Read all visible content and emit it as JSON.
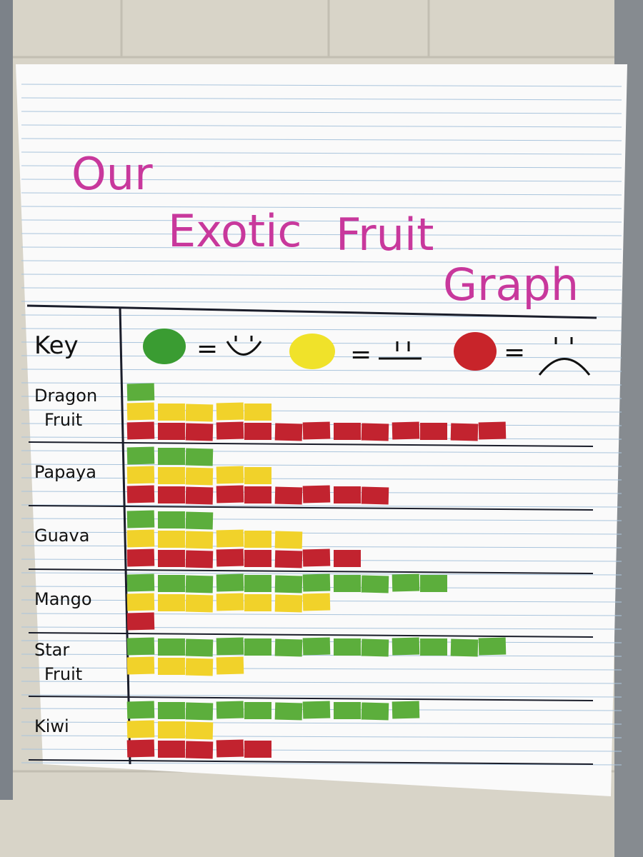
{
  "chart_data": {
    "type": "pictograph",
    "title": "Our Exotic Fruit Graph",
    "key_label": "Key",
    "categories": [
      "Dragon Fruit",
      "Papaya",
      "Guava",
      "Mango",
      "Star Fruit",
      "Kiwi"
    ],
    "series": [
      {
        "color": "#5cae3c",
        "values": [
          1,
          3,
          3,
          11,
          13,
          10
        ]
      },
      {
        "color": "#f1d22a",
        "values": [
          5,
          5,
          6,
          7,
          4,
          3
        ]
      },
      {
        "color": "#c2232f",
        "values": [
          13,
          9,
          8,
          1,
          0,
          5
        ]
      }
    ]
  }
}
